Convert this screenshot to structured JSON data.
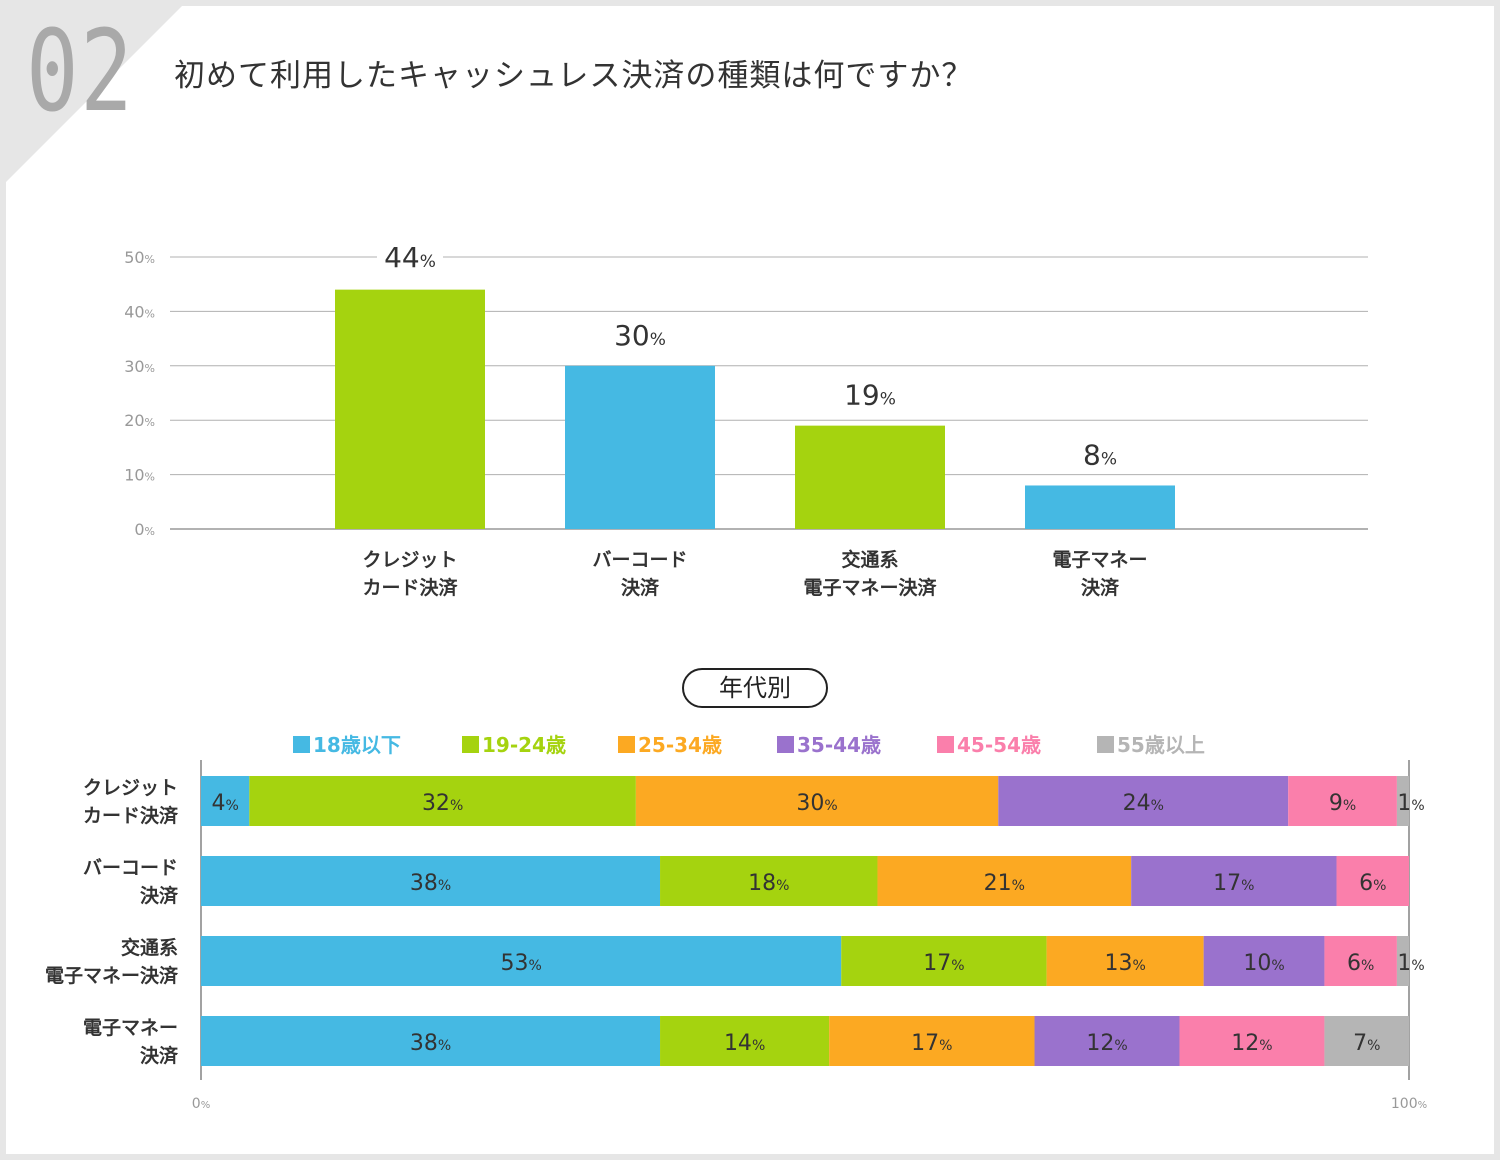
{
  "header": {
    "number": "02",
    "title": "初めて利用したキャッシュレス決済の種類は何ですか？"
  },
  "colors": {
    "green": "#a5d30f",
    "blue": "#45b9e3",
    "orange": "#fca922",
    "purple": "#9a72cd",
    "pink": "#fa7fab",
    "gray": "#b5b5b5"
  },
  "subtitle": "年代別",
  "chart_data": [
    {
      "type": "bar",
      "title": "初めて利用したキャッシュレス決済の種類は何ですか？",
      "ylim": [
        0,
        50
      ],
      "yticks": [
        "50%",
        "40%",
        "30%",
        "20%",
        "10%",
        "0%"
      ],
      "ytick_values": [
        50,
        40,
        30,
        20,
        10,
        0
      ],
      "grid": true,
      "categories": [
        [
          "クレジット",
          "カード決済"
        ],
        [
          "バーコード",
          "決済"
        ],
        [
          "交通系",
          "電子マネー決済"
        ],
        [
          "電子マネー",
          "決済"
        ]
      ],
      "values": [
        44,
        30,
        19,
        8
      ],
      "value_labels": [
        "44",
        "30",
        "19",
        "8"
      ],
      "unit": "%",
      "bar_colors": [
        "#a5d30f",
        "#45b9e3",
        "#a5d30f",
        "#45b9e3"
      ]
    },
    {
      "type": "bar",
      "orientation": "horizontal-stacked-100",
      "title": "年代別",
      "legend_position": "top",
      "legend": [
        "18歳以下",
        "19-24歳",
        "25-34歳",
        "35-44歳",
        "45-54歳",
        "55歳以上"
      ],
      "legend_colors": [
        "#45b9e3",
        "#a5d30f",
        "#fca922",
        "#9a72cd",
        "#fa7fab",
        "#b5b5b5"
      ],
      "xlim": [
        0,
        100
      ],
      "xticks": [
        "0%",
        "100%"
      ],
      "unit": "%",
      "rows": [
        {
          "label": [
            "クレジット",
            "カード決済"
          ],
          "values": [
            4,
            32,
            30,
            24,
            9,
            1
          ]
        },
        {
          "label": [
            "バーコード",
            "決済"
          ],
          "values": [
            38,
            18,
            21,
            17,
            6,
            0
          ]
        },
        {
          "label": [
            "交通系",
            "電子マネー決済"
          ],
          "values": [
            53,
            17,
            13,
            10,
            6,
            1
          ]
        },
        {
          "label": [
            "電子マネー",
            "決済"
          ],
          "values": [
            38,
            14,
            17,
            12,
            12,
            7
          ]
        }
      ]
    }
  ]
}
